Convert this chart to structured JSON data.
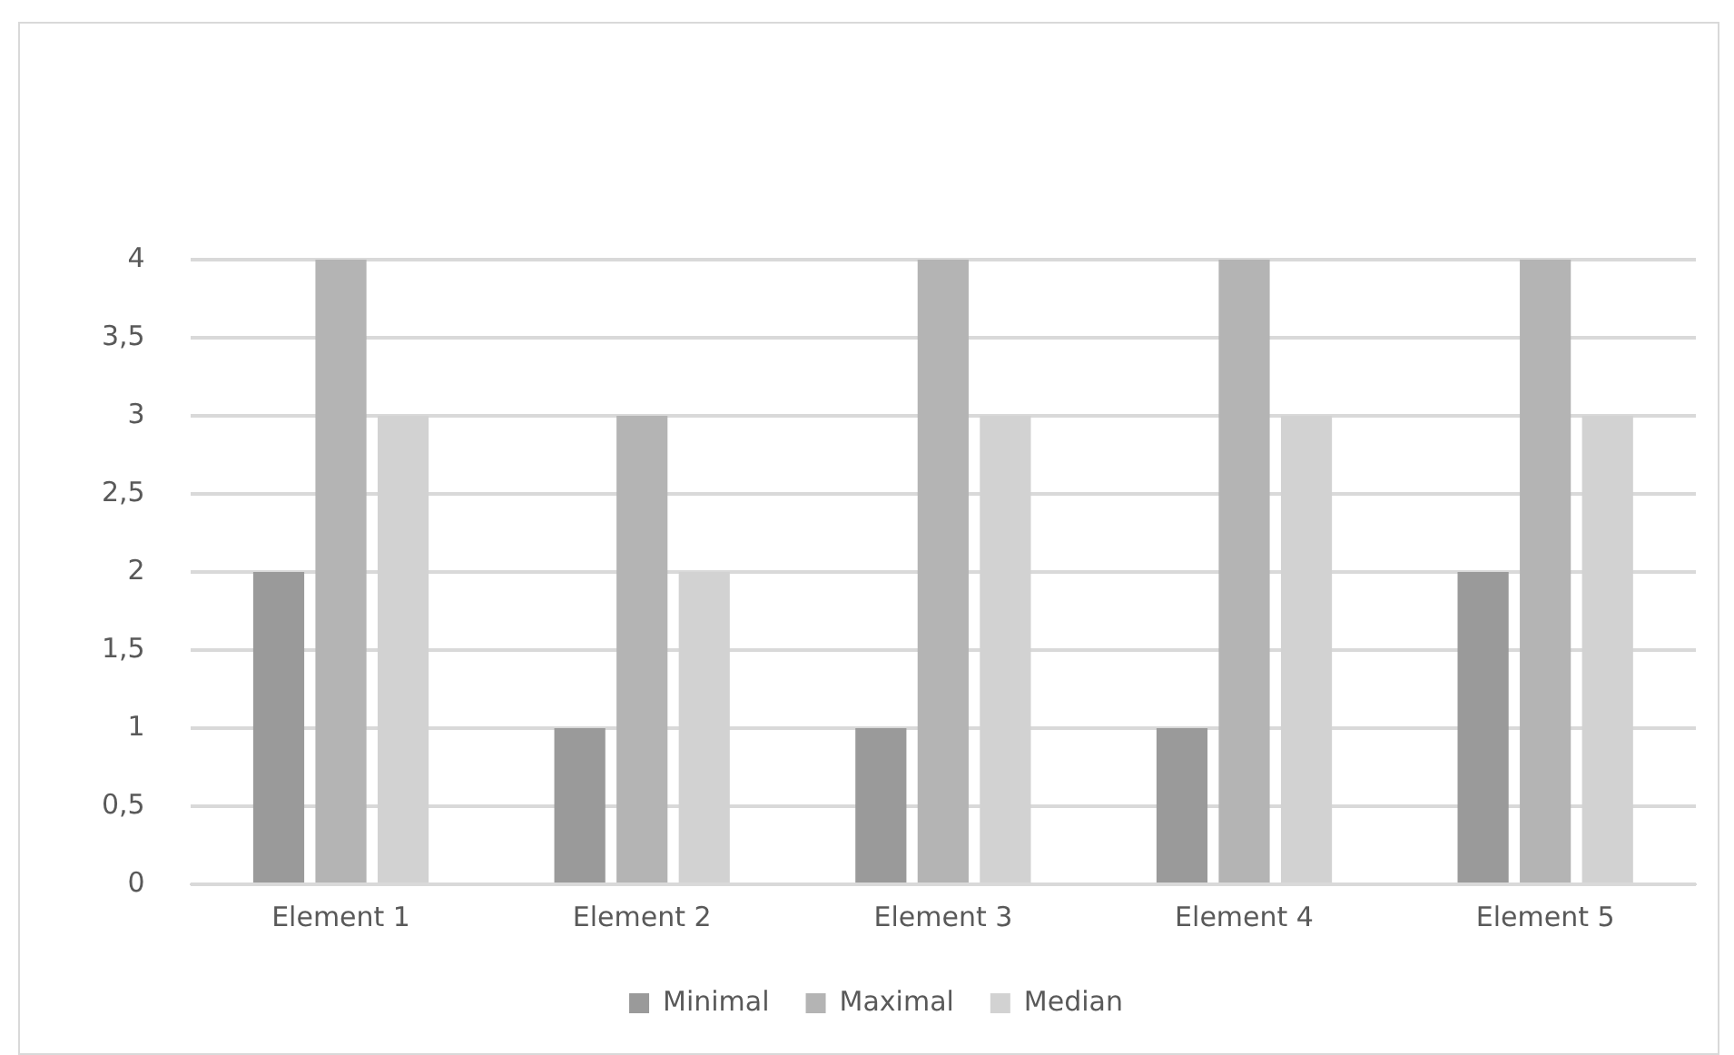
{
  "chart_data": {
    "type": "bar",
    "categories": [
      "Element 1",
      "Element 2",
      "Element 3",
      "Element 4",
      "Element 5"
    ],
    "series": [
      {
        "name": "Minimal",
        "color": "#9a9a9a",
        "values": [
          2,
          1,
          1,
          1,
          2
        ]
      },
      {
        "name": "Maximal",
        "color": "#b4b4b4",
        "values": [
          4,
          3,
          4,
          4,
          4
        ]
      },
      {
        "name": "Median",
        "color": "#d2d2d2",
        "values": [
          3,
          2,
          3,
          3,
          3
        ]
      }
    ],
    "ylim": [
      0,
      4
    ],
    "yticks": [
      0,
      {
        "value": 0.5,
        "label": "0,5"
      },
      1,
      {
        "value": 1.5,
        "label": "1,5"
      },
      2,
      {
        "value": 2.5,
        "label": "2,5"
      },
      3,
      {
        "value": 3.5,
        "label": "3,5"
      },
      4
    ],
    "grid": "y",
    "legend": "bottom"
  }
}
